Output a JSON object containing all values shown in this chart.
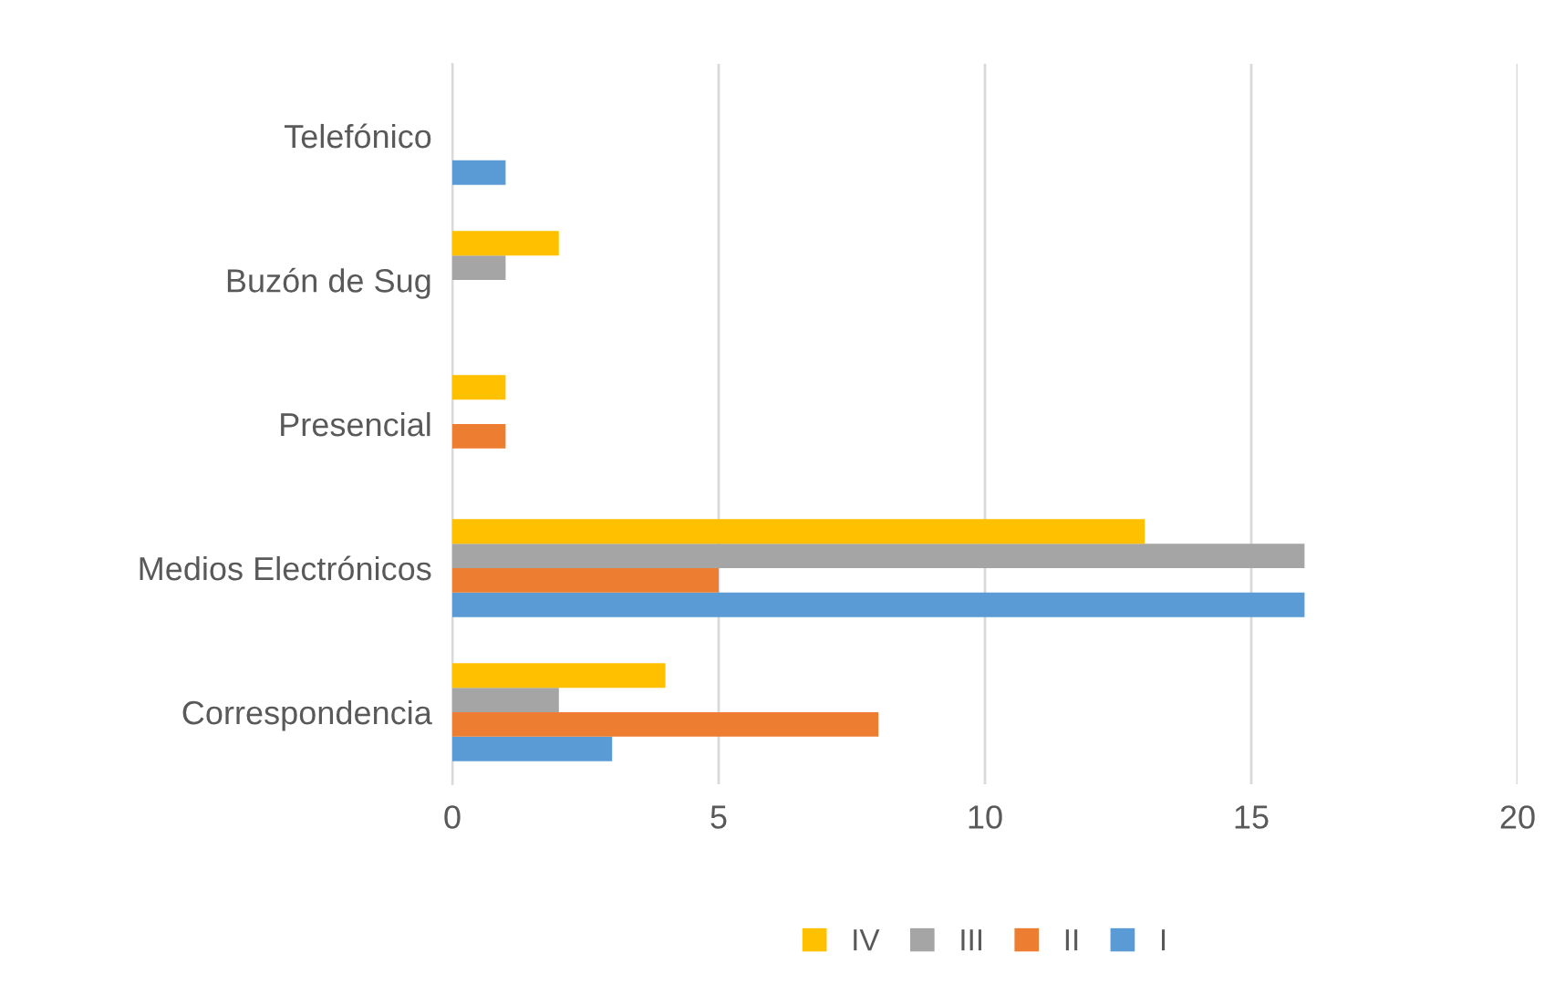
{
  "chart_data": {
    "type": "bar",
    "orientation": "horizontal",
    "categories": [
      "Telefónico",
      "Buzón de Sug",
      "Presencial",
      "Medios Electrónicos",
      "Correspondencia"
    ],
    "series": [
      {
        "name": "I",
        "color": "#5b9bd5",
        "values": [
          1,
          0,
          0,
          16,
          3
        ]
      },
      {
        "name": "II",
        "color": "#ed7d31",
        "values": [
          0,
          0,
          1,
          5,
          8
        ]
      },
      {
        "name": "III",
        "color": "#a5a5a5",
        "values": [
          0,
          1,
          0,
          16,
          2
        ]
      },
      {
        "name": "IV",
        "color": "#ffc000",
        "values": [
          0,
          2,
          1,
          13,
          4
        ]
      }
    ],
    "xlim": [
      0,
      20
    ],
    "xticks": [
      0,
      5,
      10,
      15,
      20
    ],
    "grid": "x",
    "legend": "bottom"
  }
}
